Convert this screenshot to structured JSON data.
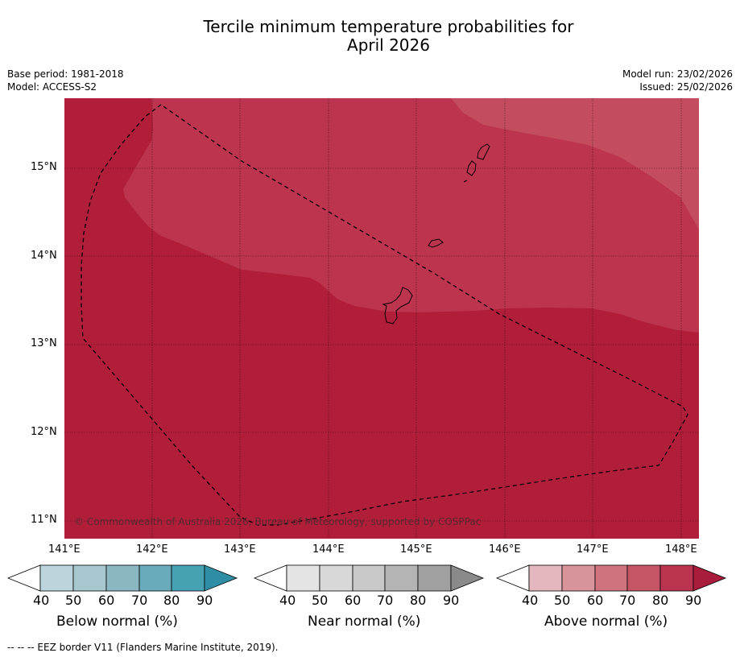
{
  "title": {
    "line1": "Tercile minimum temperature probabilities for",
    "line2": "April 2026"
  },
  "meta": {
    "base_period": "Base period: 1981-2018",
    "model": "Model: ACCESS-S2",
    "model_run": "Model run: 23/02/2026",
    "issued": "Issued: 25/02/2026"
  },
  "map": {
    "latitude_labels": [
      "15°N",
      "14°N",
      "13°N",
      "12°N",
      "11°N"
    ],
    "longitude_labels": [
      "141°E",
      "142°E",
      "143°E",
      "144°E",
      "145°E",
      "146°E",
      "147°E",
      "148°E"
    ],
    "copyright": "© Commonwealth of Australia 2026, Bureau of Meteorology, supported by COSPPac",
    "colors": {
      "above_90": "#b11e3a",
      "above_80": "#bc344d",
      "above_70": "#c34d5f",
      "land_outline": "#000000",
      "eez_line": "#000000"
    }
  },
  "colorbars": [
    {
      "label": "Below normal (%)",
      "ticks": [
        "40",
        "50",
        "60",
        "70",
        "80",
        "90"
      ],
      "colors": [
        "#ffffff",
        "#bcd4dc",
        "#a6c8ce",
        "#8ab7c2",
        "#6aabbb",
        "#46a1b3",
        "#2f8ea3"
      ]
    },
    {
      "label": "Near normal (%)",
      "ticks": [
        "40",
        "50",
        "60",
        "70",
        "80",
        "90"
      ],
      "colors": [
        "#ffffff",
        "#e4e4e4",
        "#d8d8d8",
        "#c8c8c8",
        "#b4b4b4",
        "#a0a0a0",
        "#8a8a8a"
      ]
    },
    {
      "label": "Above normal (%)",
      "ticks": [
        "40",
        "50",
        "60",
        "70",
        "80",
        "90"
      ],
      "colors": [
        "#ffffff",
        "#e3b7bd",
        "#d8949b",
        "#cf747e",
        "#c55565",
        "#ba3450",
        "#a91c3c"
      ]
    }
  ],
  "footer": "--  --  -- EEZ border V11 (Flanders Marine Institute, 2019)."
}
